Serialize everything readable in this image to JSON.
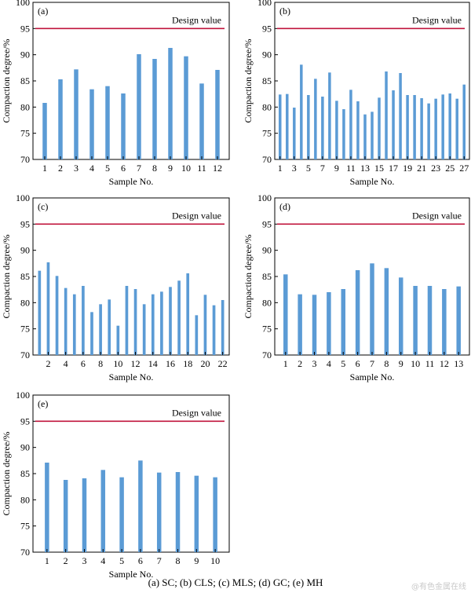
{
  "colors": {
    "bar": "#5b9bd5",
    "design_line": "#c0143c",
    "axis": "#000000"
  },
  "caption": "(a) SC; (b) CLS; (c) MLS; (d) GC; (e) MH",
  "watermark": "@有色金属在线",
  "chart_data": [
    {
      "type": "bar",
      "panel_label": "(a)",
      "xlabel": "Sample No.",
      "ylabel": "Compaction degree/%",
      "ylim": [
        70,
        100
      ],
      "yticks": [
        70,
        75,
        80,
        85,
        90,
        95,
        100
      ],
      "categories": [
        1,
        2,
        3,
        4,
        5,
        6,
        7,
        8,
        9,
        10,
        11,
        12
      ],
      "x_tick_labels": [
        "1",
        "2",
        "3",
        "4",
        "5",
        "6",
        "7",
        "8",
        "9",
        "10",
        "11",
        "12"
      ],
      "values": [
        80.8,
        85.3,
        87.2,
        83.4,
        84.0,
        82.6,
        90.1,
        89.2,
        91.3,
        89.7,
        84.5,
        87.1
      ],
      "reference_line": {
        "label": "Design value",
        "value": 95
      }
    },
    {
      "type": "bar",
      "panel_label": "(b)",
      "xlabel": "Sample No.",
      "ylabel": "Compaction degree/%",
      "ylim": [
        70,
        100
      ],
      "yticks": [
        70,
        75,
        80,
        85,
        90,
        95,
        100
      ],
      "categories": [
        1,
        2,
        3,
        4,
        5,
        6,
        7,
        8,
        9,
        10,
        11,
        12,
        13,
        14,
        15,
        16,
        17,
        18,
        19,
        20,
        21,
        22,
        23,
        24,
        25,
        26,
        27
      ],
      "x_tick_labels": [
        "1",
        "3",
        "5",
        "7",
        "9",
        "11",
        "13",
        "15",
        "17",
        "19",
        "21",
        "23",
        "25",
        "27"
      ],
      "values": [
        82.4,
        82.5,
        79.9,
        88.1,
        82.3,
        85.4,
        82.0,
        86.6,
        81.2,
        79.6,
        83.3,
        81.1,
        78.6,
        79.1,
        81.8,
        86.8,
        83.2,
        86.5,
        82.3,
        82.3,
        81.7,
        80.7,
        81.6,
        82.4,
        82.6,
        81.6,
        84.3
      ],
      "reference_line": {
        "label": "Design value",
        "value": 95
      }
    },
    {
      "type": "bar",
      "panel_label": "(c)",
      "xlabel": "Sample No.",
      "ylabel": "Compaction degree/%",
      "ylim": [
        70,
        100
      ],
      "yticks": [
        70,
        75,
        80,
        85,
        90,
        95,
        100
      ],
      "categories": [
        1,
        2,
        3,
        4,
        5,
        6,
        7,
        8,
        9,
        10,
        11,
        12,
        13,
        14,
        15,
        16,
        17,
        18,
        19,
        20,
        21,
        22
      ],
      "x_tick_labels": [
        "2",
        "4",
        "6",
        "8",
        "10",
        "12",
        "14",
        "16",
        "18",
        "20",
        "22"
      ],
      "values": [
        86.1,
        87.7,
        85.1,
        82.8,
        81.6,
        83.2,
        78.2,
        79.7,
        80.6,
        75.6,
        83.2,
        82.6,
        79.7,
        81.6,
        82.1,
        83.0,
        84.2,
        85.6,
        77.6,
        81.5,
        79.5,
        80.5
      ],
      "reference_line": {
        "label": "Design value",
        "value": 95
      }
    },
    {
      "type": "bar",
      "panel_label": "(d)",
      "xlabel": "Sample No.",
      "ylabel": "Compaction degree/%",
      "ylim": [
        70,
        100
      ],
      "yticks": [
        70,
        75,
        80,
        85,
        90,
        95,
        100
      ],
      "categories": [
        1,
        2,
        3,
        4,
        5,
        6,
        7,
        8,
        9,
        10,
        11,
        12,
        13
      ],
      "x_tick_labels": [
        "1",
        "2",
        "3",
        "4",
        "5",
        "6",
        "7",
        "8",
        "9",
        "10",
        "11",
        "12",
        "13"
      ],
      "values": [
        85.4,
        81.6,
        81.5,
        82.0,
        82.6,
        86.2,
        87.5,
        86.6,
        84.8,
        83.2,
        83.2,
        82.6,
        83.1
      ],
      "reference_line": {
        "label": "Design value",
        "value": 95
      }
    },
    {
      "type": "bar",
      "panel_label": "(e)",
      "xlabel": "Sample No.",
      "ylabel": "Compaction degree/%",
      "ylim": [
        70,
        100
      ],
      "yticks": [
        70,
        75,
        80,
        85,
        90,
        95,
        100
      ],
      "categories": [
        1,
        2,
        3,
        4,
        5,
        6,
        7,
        8,
        9,
        10
      ],
      "x_tick_labels": [
        "1",
        "2",
        "3",
        "4",
        "5",
        "6",
        "7",
        "8",
        "9",
        "10"
      ],
      "values": [
        87.1,
        83.8,
        84.1,
        85.7,
        84.3,
        87.5,
        85.2,
        85.3,
        84.6,
        84.3
      ],
      "reference_line": {
        "label": "Design value",
        "value": 95
      }
    }
  ]
}
